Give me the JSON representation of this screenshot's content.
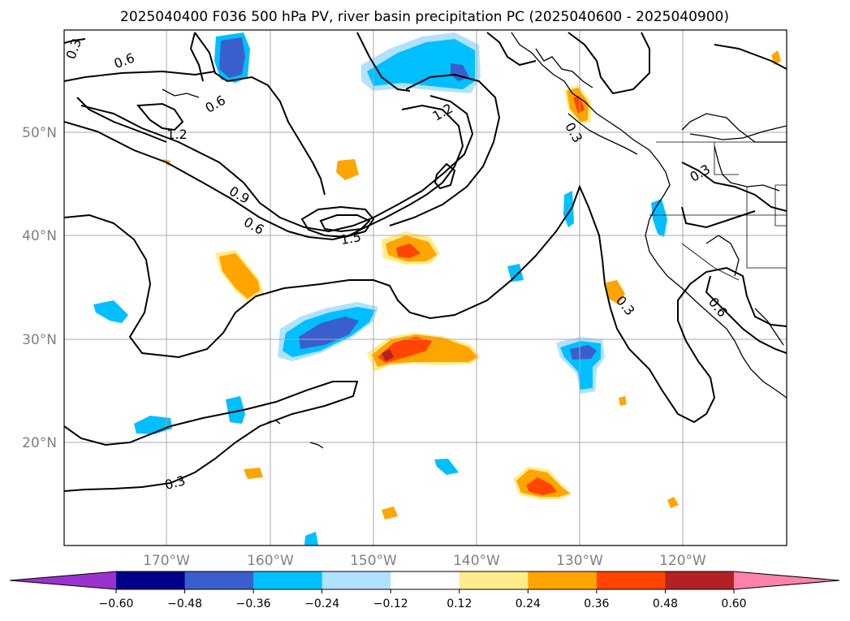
{
  "title": "2025040400 F036 500 hPa PV, river basin precipitation PC (2025040600 - 2025040900)",
  "lat_ticks": [
    "50°N",
    "40°N",
    "30°N",
    "20°N"
  ],
  "lon_ticks": [
    "170°W",
    "160°W",
    "150°W",
    "140°W",
    "130°W",
    "120°W"
  ],
  "colorbar": {
    "ticks": [
      "−0.60",
      "−0.48",
      "−0.36",
      "−0.24",
      "−0.12",
      "0.12",
      "0.24",
      "0.36",
      "0.48",
      "0.60"
    ],
    "colors": [
      "#9a32cd",
      "#00008b",
      "#3a5fcd",
      "#00bfff",
      "#b0e2ff",
      "#ffffff",
      "#ffec8b",
      "#ffa500",
      "#ff4500",
      "#b22222",
      "#ff82ab"
    ],
    "extend": "both"
  },
  "contour_labels": [
    "0.3",
    "0.6",
    "0.6",
    "1.2",
    "0.9",
    "0.6",
    "1.5",
    "1.2",
    "0.3",
    "0.3",
    "0.3",
    "0.6",
    "0.3"
  ],
  "map": {
    "projection": "PlateCarree",
    "extent_lon": [
      -180,
      -110
    ],
    "extent_lat": [
      10,
      60
    ],
    "gridlines": true,
    "coastlines": true,
    "borders": true
  }
}
